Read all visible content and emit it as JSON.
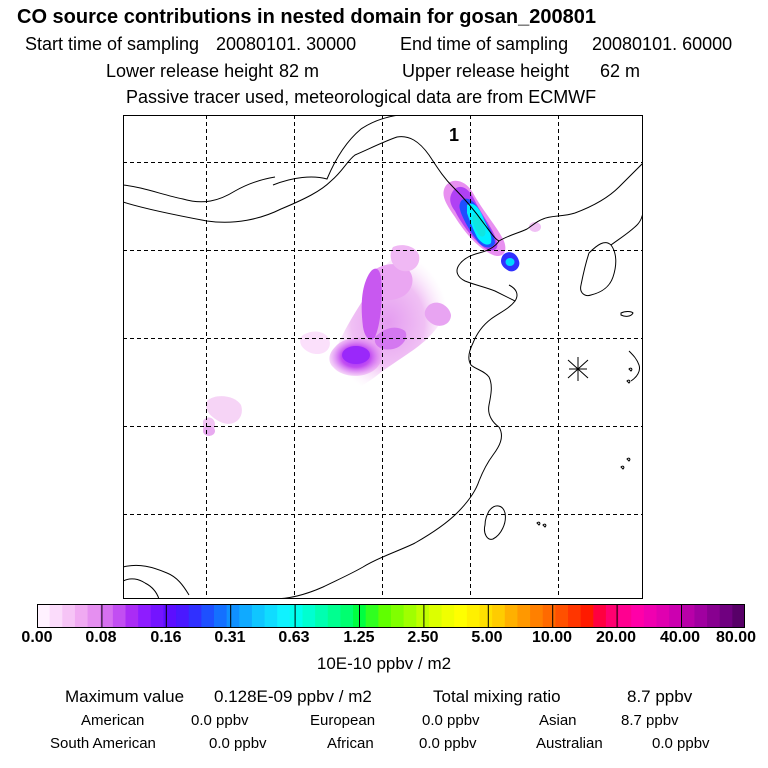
{
  "header": {
    "title": "CO  source contributions in nested domain for gosan_200801",
    "start_label": "Start time of sampling",
    "start_value": "20080101. 30000",
    "end_label": "End time of sampling",
    "end_value": "20080101. 60000",
    "lower_label": "Lower release height",
    "lower_value": "82 m",
    "upper_label": "Upper release height",
    "upper_value": "62 m",
    "tracer_note": "Passive tracer used, meteorological data are from ECMWF"
  },
  "map": {
    "marker_label": "1",
    "receptor_symbol": "asterisk"
  },
  "colorbar": {
    "labels": [
      "0.00",
      "0.08",
      "0.16",
      "0.31",
      "0.63",
      "1.25",
      "2.50",
      "5.00",
      "10.00",
      "20.00",
      "40.00",
      "80.00"
    ],
    "unit": "10E-10 ppbv / m2",
    "colors": [
      "#fff2ff",
      "#fbdcfb",
      "#f6c4f6",
      "#f0aaf2",
      "#e58ff0",
      "#d670f0",
      "#c24ef2",
      "#aa2cf5",
      "#8e1cff",
      "#7414ff",
      "#5c0eff",
      "#4a18ff",
      "#3030ff",
      "#1e50ff",
      "#1470ff",
      "#1090ff",
      "#10aaff",
      "#10c6ff",
      "#10dcff",
      "#10f2ff",
      "#00ffee",
      "#00ffd0",
      "#00ffb0",
      "#00ff90",
      "#00ff70",
      "#00ff40",
      "#30ff20",
      "#60ff00",
      "#80ff00",
      "#a0ff00",
      "#c0ff00",
      "#dcff00",
      "#f0ff00",
      "#ffff00",
      "#fff000",
      "#ffe000",
      "#ffcc00",
      "#ffb000",
      "#ff9800",
      "#ff8000",
      "#ff6a00",
      "#ff5000",
      "#ff3600",
      "#ff1a00",
      "#ff0040",
      "#ff0070",
      "#ff0090",
      "#ff00a8",
      "#f000b0",
      "#e000b0",
      "#cc00b0",
      "#b800a8",
      "#a000a0",
      "#880090",
      "#700080",
      "#580068"
    ]
  },
  "stats": {
    "max_label": "Maximum value",
    "max_value": "0.128E-09 ppbv / m2",
    "total_label": "Total mixing ratio",
    "total_value": "8.7 ppbv",
    "regions_row1": [
      {
        "name": "American",
        "value": "0.0 ppbv"
      },
      {
        "name": "European",
        "value": "0.0 ppbv"
      },
      {
        "name": "Asian",
        "value": "8.7 ppbv"
      }
    ],
    "regions_row2": [
      {
        "name": "South American",
        "value": "0.0 ppbv"
      },
      {
        "name": "African",
        "value": "0.0 ppbv"
      },
      {
        "name": "Australian",
        "value": "0.0 ppbv"
      }
    ]
  }
}
